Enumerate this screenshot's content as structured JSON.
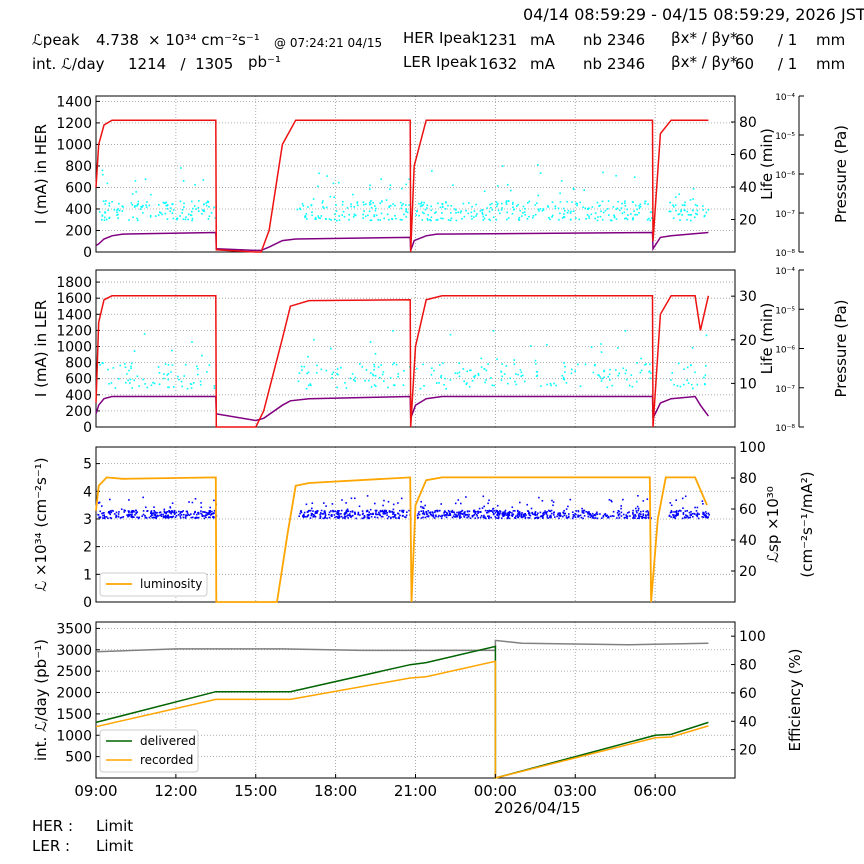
{
  "header": {
    "time_range": "04/14 08:59:29 - 04/15 08:59:29, 2026 JST",
    "lpeak_label": "ℒpeak",
    "lpeak_value": "4.738",
    "lpeak_unit": "× 10³⁴ cm⁻²s⁻¹",
    "lpeak_time": "@ 07:24:21 04/15",
    "intl_label": "int. ℒ/day",
    "intl_value": "1214   /  1305",
    "intl_unit": "pb⁻¹",
    "her_label": "HER Ipeak",
    "her_value": "1231",
    "her_unit": "mA",
    "ler_label": "LER Ipeak",
    "ler_value": "1632",
    "ler_unit": "mA",
    "nb_label": "nb",
    "her_nb": "2346",
    "ler_nb": "2346",
    "beta_label": "βx* / βy*",
    "her_beta": "60     / 1",
    "ler_beta": "60     / 1",
    "beta_unit": "mm"
  },
  "footer": {
    "her_label": "HER :",
    "her_status": "Limit",
    "ler_label": "LER :",
    "ler_status": "Limit"
  },
  "colors": {
    "current": "#ee1111",
    "lifetime": "#800080",
    "pressure": "#00ffff",
    "luminosity": "#ffa500",
    "specific": "#0000ff",
    "delivered": "#006400",
    "recorded": "#ffa500",
    "efficiency": "#808080"
  },
  "chart_data": [
    {
      "type": "line",
      "id": "her",
      "ylabel": "I (mA) in HER",
      "y2label": "Life (min)",
      "y3label": "Pressure (Pa)",
      "ylim": [
        0,
        1450
      ],
      "yticks": [
        0,
        200,
        400,
        600,
        800,
        1000,
        1200,
        1400
      ],
      "y2lim": [
        0,
        96
      ],
      "y2ticks": [
        20,
        40,
        60,
        80
      ],
      "y3ticks": [
        "10⁻⁸",
        "10⁻⁷",
        "10⁻⁶",
        "10⁻⁵",
        "10⁻⁴"
      ],
      "x_hours": [
        0,
        0.1,
        0.3,
        0.6,
        1.0,
        4.5,
        4.52,
        6.0,
        6.2,
        6.5,
        7.0,
        7.5,
        11.8,
        11.82,
        11.95,
        12.4,
        12.8,
        20.9,
        20.92,
        21.2,
        21.6,
        23.0
      ],
      "current_mA": [
        600,
        1000,
        1180,
        1225,
        1225,
        1225,
        20,
        0,
        0,
        200,
        1000,
        1225,
        1225,
        0,
        800,
        1225,
        1225,
        1225,
        100,
        1100,
        1225,
        1225
      ],
      "lifetime_min": [
        4,
        5,
        8,
        10,
        11,
        12,
        2,
        1,
        1,
        3,
        7,
        8,
        9,
        1,
        7,
        10,
        11,
        12,
        2,
        9,
        10,
        12
      ]
    },
    {
      "type": "line",
      "id": "ler",
      "ylabel": "I (mA) in LER",
      "y2label": "Life (min)",
      "y3label": "Pressure (Pa)",
      "ylim": [
        0,
        1950
      ],
      "yticks": [
        0,
        200,
        400,
        600,
        800,
        1000,
        1200,
        1400,
        1600,
        1800
      ],
      "y2lim": [
        0,
        36
      ],
      "y2ticks": [
        10,
        20,
        30
      ],
      "y3ticks": [
        "10⁻⁸",
        "10⁻⁷",
        "10⁻⁶",
        "10⁻⁵",
        "10⁻⁴"
      ],
      "x_hours": [
        0,
        0.1,
        0.3,
        0.6,
        1.0,
        4.5,
        4.52,
        6.0,
        6.3,
        7.0,
        7.3,
        8.0,
        11.8,
        11.82,
        12.0,
        12.4,
        13.0,
        20.9,
        20.92,
        21.2,
        21.6,
        22.5,
        22.7,
        23.0
      ],
      "current_mA": [
        300,
        1300,
        1580,
        1630,
        1630,
        1630,
        0,
        0,
        200,
        1100,
        1500,
        1570,
        1580,
        0,
        1000,
        1580,
        1630,
        1630,
        0,
        1400,
        1630,
        1630,
        1200,
        1630
      ],
      "lifetime_min": [
        3,
        5,
        6.5,
        7,
        7,
        7,
        3,
        1.5,
        2,
        5,
        6,
        6.5,
        7,
        2,
        5,
        6.5,
        7,
        7,
        2,
        5.5,
        6.5,
        7,
        5,
        2.5
      ]
    },
    {
      "type": "line",
      "id": "lumi",
      "ylabel": "ℒ ×10³⁴ (cm⁻²s⁻¹)",
      "y2label": "ℒsp ×10³⁰ (cm⁻²s⁻¹/mA²)",
      "legend": [
        "luminosity"
      ],
      "ylim": [
        0,
        5.6
      ],
      "yticks": [
        0,
        1,
        2,
        3,
        4,
        5
      ],
      "y2lim": [
        0,
        100
      ],
      "y2ticks": [
        20,
        40,
        60,
        80,
        100
      ],
      "x_hours": [
        0,
        0.1,
        0.4,
        1.0,
        4.5,
        4.52,
        6.8,
        7.2,
        7.5,
        8.0,
        11.8,
        11.85,
        12.0,
        12.4,
        13.0,
        20.8,
        20.85,
        21.1,
        21.4,
        22.5,
        22.95
      ],
      "luminosity": [
        3.3,
        4.2,
        4.5,
        4.45,
        4.5,
        0,
        0,
        2.5,
        4.2,
        4.3,
        4.5,
        0,
        3.5,
        4.4,
        4.5,
        4.5,
        0,
        3.0,
        4.5,
        4.5,
        3.5
      ],
      "specific_mean": 57
    },
    {
      "type": "line",
      "id": "int",
      "ylabel": "int. ℒ/day (pb⁻¹)",
      "y2label": "Efficiency (%)",
      "legend": [
        "delivered",
        "recorded"
      ],
      "ylim": [
        0,
        3650
      ],
      "yticks": [
        500,
        1000,
        1500,
        2000,
        2500,
        3000,
        3500
      ],
      "y2lim": [
        0,
        110
      ],
      "y2ticks": [
        20,
        40,
        60,
        80,
        100
      ],
      "xticks": [
        "09:00",
        "12:00",
        "15:00",
        "18:00",
        "21:00",
        "00:00",
        "03:00",
        "06:00"
      ],
      "xdate": "2026/04/15",
      "x_hours": [
        0,
        4.5,
        7.3,
        11.8,
        12.4,
        15.0,
        15.001,
        21.0,
        21.6,
        23.0
      ],
      "delivered": [
        1300,
        2020,
        2020,
        2650,
        2700,
        3080,
        0,
        1000,
        1020,
        1300
      ],
      "recorded": [
        1200,
        1840,
        1840,
        2340,
        2370,
        2730,
        0,
        940,
        960,
        1220
      ],
      "efficiency_x": [
        0,
        3.0,
        7.0,
        10.0,
        15.0,
        15.001,
        16.0,
        20.0,
        23.0
      ],
      "efficiency": [
        89,
        91,
        91,
        90,
        90,
        97,
        95,
        94,
        95
      ]
    }
  ]
}
